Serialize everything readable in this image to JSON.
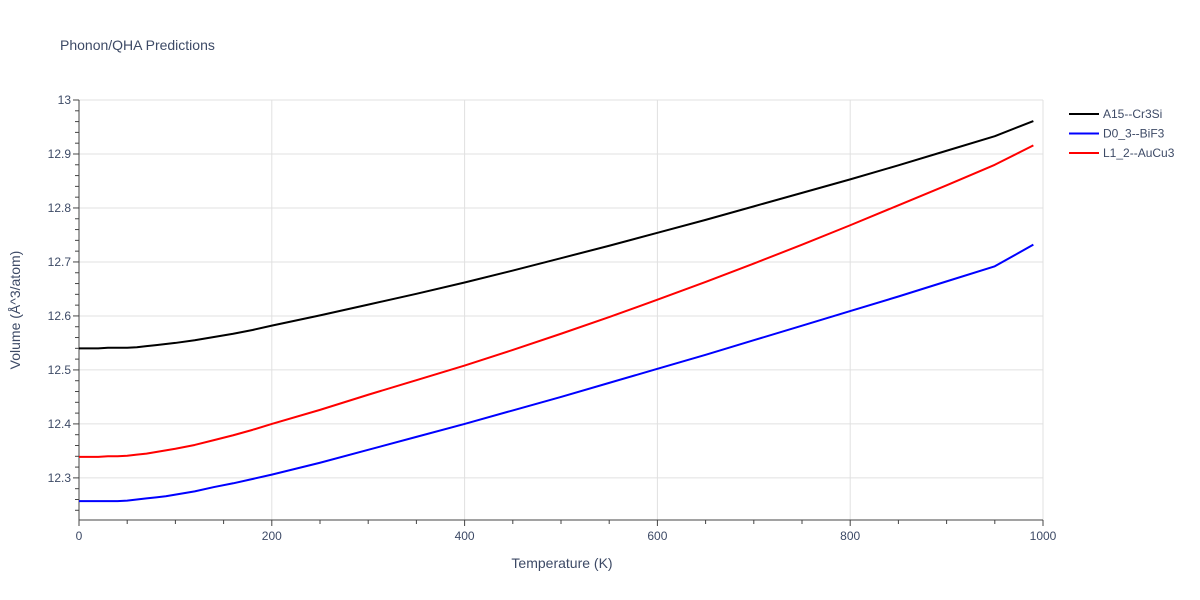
{
  "chart_data": {
    "type": "line",
    "title": "Phonon/QHA Predictions",
    "xlabel": "Temperature (K)",
    "ylabel": "Volume (Å^3/atom)",
    "xlim": [
      0,
      1000
    ],
    "ylim": [
      12.222,
      13.0
    ],
    "x_ticks": [
      0,
      200,
      400,
      600,
      800,
      1000
    ],
    "x_tick_labels": [
      "0",
      "200",
      "400",
      "600",
      "800",
      "1000"
    ],
    "y_ticks": [
      12.3,
      12.4,
      12.5,
      12.6,
      12.7,
      12.8,
      12.9,
      13.0
    ],
    "y_tick_labels": [
      "12.3",
      "12.4",
      "12.5",
      "12.6",
      "12.7",
      "12.8",
      "12.9",
      "13"
    ],
    "grid": true,
    "legend_position": "top-right",
    "series": [
      {
        "name": "A15--Cr3Si",
        "color": "#000000",
        "x": [
          0,
          10,
          20,
          30,
          40,
          50,
          60,
          70,
          80,
          90,
          100,
          120,
          140,
          160,
          180,
          200,
          250,
          300,
          350,
          400,
          450,
          500,
          550,
          600,
          650,
          700,
          750,
          800,
          850,
          900,
          950,
          990
        ],
        "y": [
          12.54,
          12.54,
          12.54,
          12.541,
          12.541,
          12.541,
          12.542,
          12.544,
          12.546,
          12.548,
          12.55,
          12.555,
          12.561,
          12.567,
          12.574,
          12.582,
          12.601,
          12.621,
          12.641,
          12.662,
          12.684,
          12.707,
          12.73,
          12.754,
          12.778,
          12.803,
          12.828,
          12.853,
          12.879,
          12.906,
          12.933,
          12.961
        ]
      },
      {
        "name": "D0_3--BiF3",
        "color": "#0000ff",
        "x": [
          0,
          10,
          20,
          30,
          40,
          50,
          60,
          70,
          80,
          90,
          100,
          120,
          140,
          160,
          180,
          200,
          250,
          300,
          350,
          400,
          450,
          500,
          550,
          600,
          650,
          700,
          750,
          800,
          850,
          900,
          950,
          990
        ],
        "y": [
          12.257,
          12.257,
          12.257,
          12.257,
          12.257,
          12.258,
          12.26,
          12.262,
          12.264,
          12.266,
          12.269,
          12.275,
          12.283,
          12.29,
          12.298,
          12.306,
          12.328,
          12.352,
          12.376,
          12.4,
          12.425,
          12.45,
          12.476,
          12.502,
          12.528,
          12.555,
          12.582,
          12.609,
          12.636,
          12.664,
          12.692,
          12.732
        ]
      },
      {
        "name": "L1_2--AuCu3",
        "color": "#ff0000",
        "x": [
          0,
          10,
          20,
          30,
          40,
          50,
          60,
          70,
          80,
          90,
          100,
          120,
          140,
          160,
          180,
          200,
          250,
          300,
          350,
          400,
          450,
          500,
          550,
          600,
          650,
          700,
          750,
          800,
          850,
          900,
          950,
          990
        ],
        "y": [
          12.339,
          12.339,
          12.339,
          12.34,
          12.34,
          12.341,
          12.343,
          12.345,
          12.348,
          12.351,
          12.354,
          12.361,
          12.37,
          12.379,
          12.389,
          12.4,
          12.426,
          12.454,
          12.481,
          12.508,
          12.537,
          12.567,
          12.598,
          12.63,
          12.663,
          12.697,
          12.732,
          12.768,
          12.805,
          12.842,
          12.88,
          12.916
        ]
      }
    ]
  }
}
